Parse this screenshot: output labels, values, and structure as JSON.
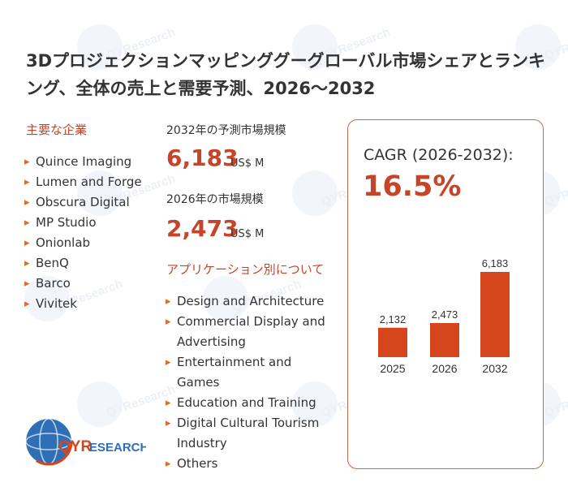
{
  "title": "3Dプロジェクションマッピンググーグローバル市場シェアとランキング、全体の売上と需要予測、2026～2032",
  "key_companies": {
    "heading": "主要な企業",
    "items": [
      "Quince Imaging",
      "Lumen and Forge",
      "Obscura Digital",
      "MP Studio",
      "Onionlab",
      "BenQ",
      "Barco",
      "Vivitek"
    ]
  },
  "market_2032": {
    "label": "2032年の予測市場規模",
    "value": "6,183",
    "unit": "US$ M"
  },
  "market_2026": {
    "label": "2026年の市場規模",
    "value": "2,473",
    "unit": "US$ M"
  },
  "applications": {
    "heading": "アプリケーション別について",
    "items": [
      "Design and Architecture",
      "Commercial Display and Advertising",
      "Entertainment and Games",
      "Education and Training",
      "Digital Cultural Tourism Industry",
      "Others"
    ]
  },
  "cagr": {
    "label": "CAGR (2026-2032):",
    "value": "16.5%"
  },
  "logo_text": {
    "part1": "QYR",
    "part2": "ESEARCH"
  },
  "watermark_text": "QYResearch",
  "colors": {
    "accent": "#c5452a",
    "bar": "#d6461c",
    "card_border": "#c86a4a",
    "bullet": "#e06a2a"
  },
  "chart_data": {
    "type": "bar",
    "categories": [
      "2025",
      "2026",
      "2032"
    ],
    "values": [
      2132,
      2473,
      6183
    ],
    "value_labels": [
      "2,132",
      "2,473",
      "6,183"
    ],
    "grid": false
  }
}
